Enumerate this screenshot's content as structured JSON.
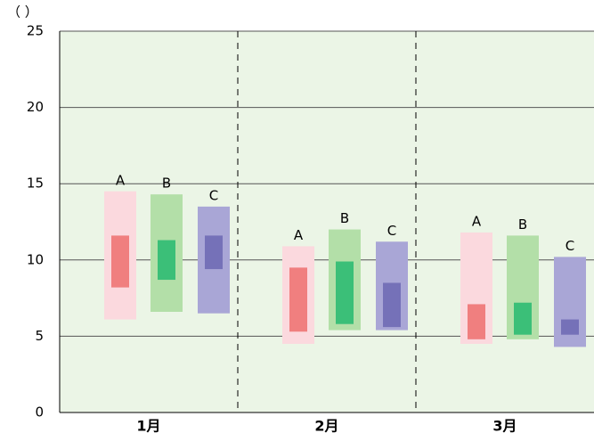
{
  "chart_data": {
    "type": "range-bar",
    "y_label": "（ ）",
    "categories": [
      "1月",
      "2月",
      "3月"
    ],
    "series": [
      {
        "name": "A",
        "color": "#fbd9de",
        "inner_color": "#f07f7f",
        "low": [
          6.1,
          4.5,
          4.5
        ],
        "high": [
          14.5,
          10.9,
          11.8
        ],
        "inner_low": [
          8.2,
          5.3,
          4.8
        ],
        "inner_high": [
          11.6,
          9.5,
          7.1
        ]
      },
      {
        "name": "B",
        "color": "#b3dfa8",
        "inner_color": "#3bbf78",
        "low": [
          6.6,
          5.4,
          4.8
        ],
        "high": [
          14.3,
          12.0,
          11.6
        ],
        "inner_low": [
          8.7,
          5.8,
          5.1
        ],
        "inner_high": [
          11.3,
          9.9,
          7.2
        ]
      },
      {
        "name": "C",
        "color": "#a9a6d6",
        "inner_color": "#7571b8",
        "low": [
          6.5,
          5.4,
          4.3
        ],
        "high": [
          13.5,
          11.2,
          10.2
        ],
        "inner_low": [
          9.4,
          5.6,
          5.1
        ],
        "inner_high": [
          11.6,
          8.5,
          6.1
        ]
      }
    ],
    "ylim": [
      0,
      25
    ],
    "yticks": [
      0,
      5,
      10,
      15,
      20,
      25
    ],
    "grid": true,
    "background": "#ebf5e6"
  }
}
